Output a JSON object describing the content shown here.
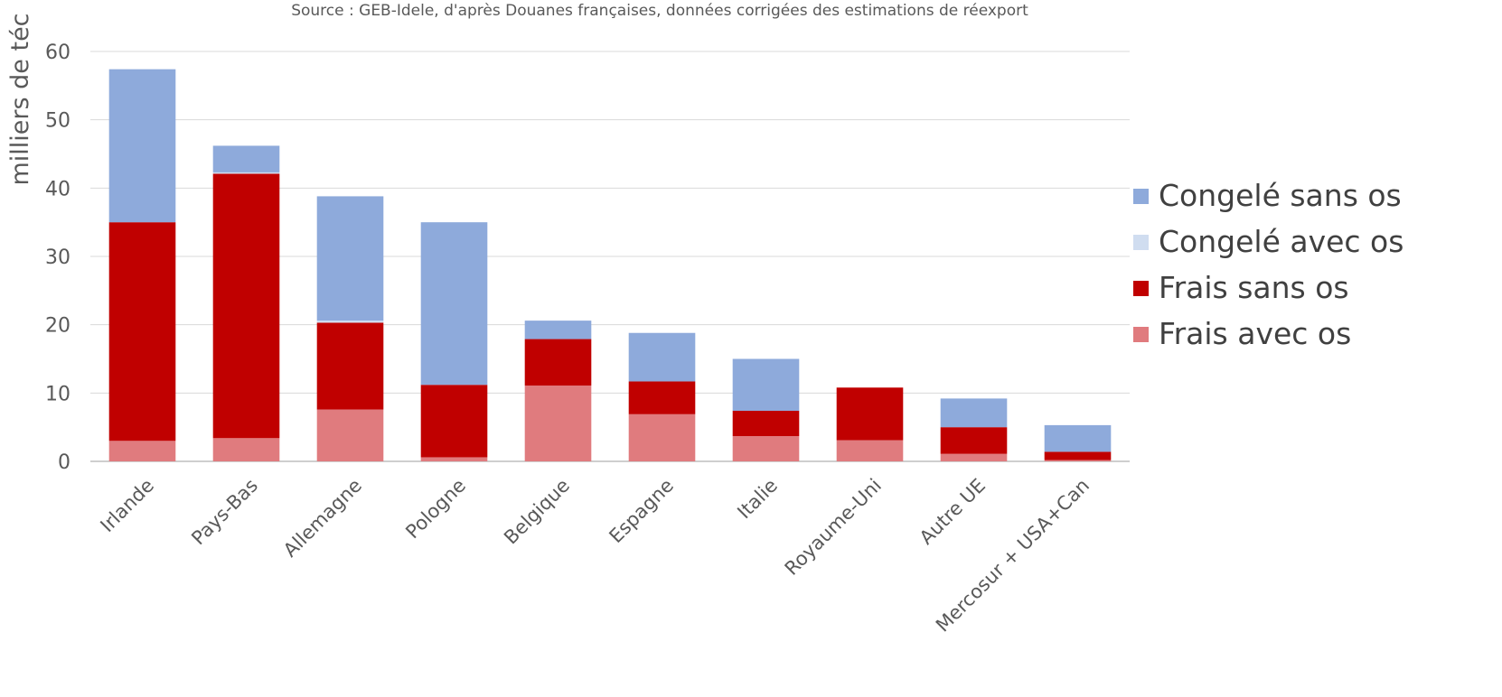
{
  "chart_data": {
    "type": "bar",
    "stacked": true,
    "source_note": "Source : GEB-Idele, d'après Douanes françaises, données corrigées des estimations de réexport",
    "ylabel": "milliers de téc",
    "xlabel": "",
    "ylim": [
      0,
      60
    ],
    "yticks": [
      "0",
      "10",
      "20",
      "30",
      "40",
      "50",
      "60"
    ],
    "grid": true,
    "legend_position": "right",
    "categories": [
      "Irlande",
      "Pays-Bas",
      "Allemagne",
      "Pologne",
      "Belgique",
      "Espagne",
      "Italie",
      "Royaume-Uni",
      "Autre UE",
      "Mercosur + USA+Can"
    ],
    "series": [
      {
        "name": "Frais avec os",
        "color": "#e07b7e",
        "values": [
          3.0,
          3.4,
          7.6,
          0.6,
          11.1,
          6.9,
          3.7,
          3.1,
          1.1,
          0.2
        ]
      },
      {
        "name": "Frais sans os",
        "color": "#c00000",
        "values": [
          32.0,
          38.7,
          12.7,
          10.6,
          6.8,
          4.8,
          3.7,
          7.7,
          3.9,
          1.2
        ]
      },
      {
        "name": "Congelé avec os",
        "color": "#d0ddf0",
        "values": [
          0.0,
          0.2,
          0.3,
          0.0,
          0.0,
          0.0,
          0.0,
          0.0,
          0.0,
          0.0
        ]
      },
      {
        "name": "Congelé sans os",
        "color": "#8eaadb",
        "values": [
          22.4,
          3.9,
          18.2,
          23.8,
          2.7,
          7.1,
          7.6,
          0.0,
          4.2,
          3.9
        ]
      }
    ],
    "legend_order": [
      "Congelé sans os",
      "Congelé avec os",
      "Frais sans os",
      "Frais avec os"
    ]
  }
}
